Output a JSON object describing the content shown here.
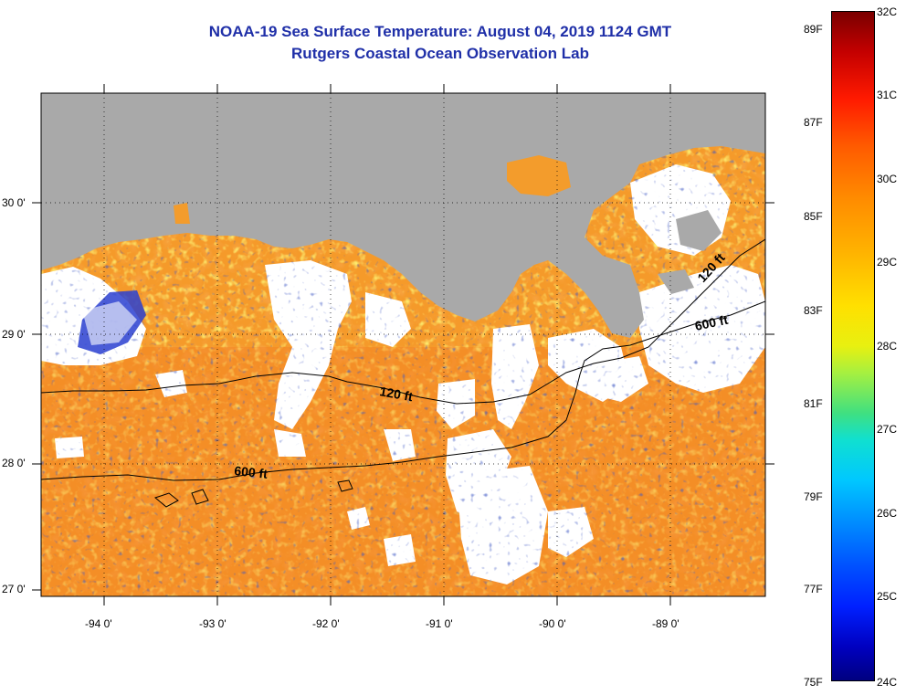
{
  "header": {
    "title": "NOAA-19 Sea Surface Temperature:  August 04, 2019 1124 GMT",
    "subtitle": "Rutgers Coastal Ocean Observation Lab"
  },
  "axes": {
    "lon_labels": [
      "-94 0'",
      "-93 0'",
      "-92 0'",
      "-91 0'",
      "-90 0'",
      "-89 0'"
    ],
    "lat_labels": [
      "30 0'",
      "29 0'",
      "28 0'",
      "27 0'"
    ]
  },
  "contour_labels": {
    "west_120": "120 ft",
    "west_600": "600 ft",
    "east_120": "120 ft",
    "east_600": "600 ft"
  },
  "colorbar": {
    "fahrenheit": [
      "89F",
      "87F",
      "85F",
      "83F",
      "81F",
      "79F",
      "77F",
      "75F"
    ],
    "celsius": [
      "32C",
      "31C",
      "30C",
      "29C",
      "28C",
      "27C",
      "26C",
      "25C",
      "24C"
    ]
  },
  "colors": {
    "land": "#a9a9a9",
    "cloud": "#ffffff",
    "warm_water": "#f59a2a",
    "title": "#1f2fa8"
  }
}
